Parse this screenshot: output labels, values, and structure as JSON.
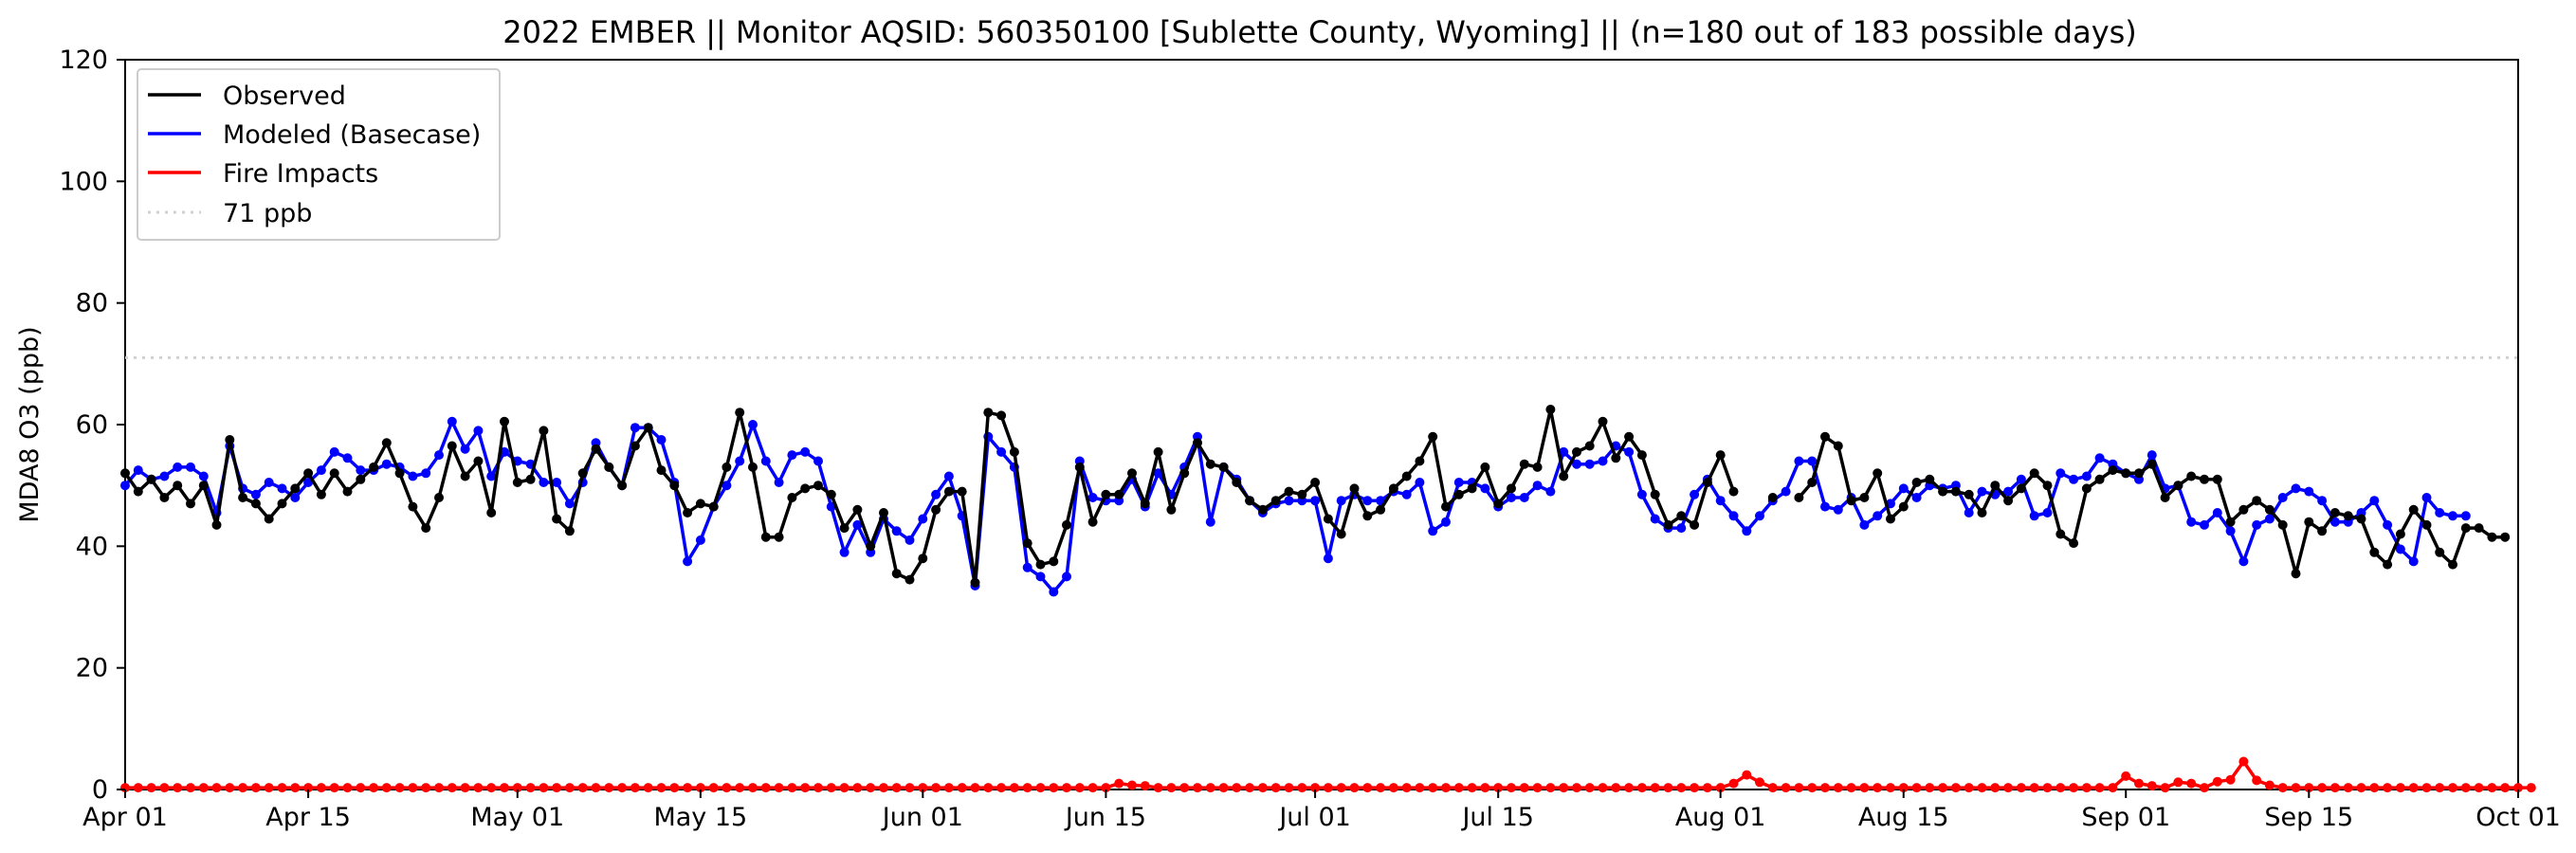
{
  "chart_data": {
    "type": "line",
    "title": "2022 EMBER || Monitor AQSID: 560350100 [Sublette County, Wyoming] || (n=180 out of 183 possible days)",
    "xlabel": "",
    "ylabel": "MDA8 O3 (ppb)",
    "xlim": [
      "2022-04-01",
      "2022-10-01"
    ],
    "ylim": [
      0,
      120
    ],
    "x_ticks": [
      "2022-04-01",
      "2022-04-15",
      "2022-05-01",
      "2022-05-15",
      "2022-06-01",
      "2022-06-15",
      "2022-07-01",
      "2022-07-15",
      "2022-08-01",
      "2022-08-15",
      "2022-09-01",
      "2022-09-15",
      "2022-10-01"
    ],
    "x_tick_labels": [
      "Apr 01",
      "Apr 15",
      "May 01",
      "May 15",
      "Jun 01",
      "Jun 15",
      "Jul 01",
      "Jul 15",
      "Aug 01",
      "Aug 15",
      "Sep 01",
      "Sep 15",
      "Oct 01"
    ],
    "y_ticks": [
      0,
      20,
      40,
      60,
      80,
      100,
      120
    ],
    "y_tick_labels": [
      "0",
      "20",
      "40",
      "60",
      "80",
      "100",
      "120"
    ],
    "grid": false,
    "legend_position": "top-left",
    "start_date": "2022-04-01",
    "threshold": {
      "name": "71 ppb",
      "value": 71,
      "color": "#d0d0d0"
    },
    "series": [
      {
        "name": "Observed",
        "color": "#000000",
        "values": [
          52,
          49,
          51,
          48,
          50,
          47,
          50,
          43.5,
          57.5,
          48,
          47,
          44.5,
          47,
          49.5,
          52,
          48.5,
          52,
          49,
          51,
          53,
          57,
          52,
          46.5,
          43,
          48,
          56.5,
          51.5,
          54,
          45.5,
          60.5,
          50.5,
          51,
          59,
          44.5,
          42.5,
          52,
          56,
          53,
          50,
          56.5,
          59.5,
          52.5,
          50,
          45.5,
          47,
          46.5,
          53,
          62,
          53,
          41.5,
          41.5,
          48,
          49.5,
          50,
          48.5,
          43,
          46,
          40,
          45.5,
          35.5,
          34.5,
          38,
          46,
          49,
          49,
          34,
          62,
          61.5,
          55.5,
          40.5,
          37,
          37.5,
          43.5,
          53,
          44,
          48.5,
          48.5,
          52,
          47,
          55.5,
          46,
          52,
          57,
          53.5,
          53,
          50.5,
          47.5,
          46,
          47.5,
          49,
          48.5,
          50.5,
          44.5,
          42,
          49.5,
          45,
          46,
          49.5,
          51.5,
          54,
          58,
          46.5,
          48.5,
          49.5,
          53,
          47,
          49.5,
          53.5,
          53,
          62.5,
          51.5,
          55.5,
          56.5,
          60.5,
          54.5,
          58,
          55,
          48.5,
          43.5,
          45,
          43.5,
          50.5,
          55,
          49,
          49,
          48.5,
          48,
          41.5,
          48,
          50.5,
          58,
          56.5,
          47.5,
          48,
          52,
          44.5,
          46.5,
          50.5,
          51,
          49,
          49,
          48.5,
          45.5,
          50,
          47.5,
          49.5,
          52,
          50,
          42,
          40.5,
          49.5,
          51,
          52.5,
          52,
          52,
          53.5,
          48,
          50,
          51.5,
          51,
          51,
          44,
          46,
          47.5,
          46,
          43.5,
          35.5,
          44,
          42.5,
          45.5,
          45,
          44.5,
          39,
          37,
          42,
          46,
          43.5,
          39,
          37,
          43,
          43,
          41.5,
          41.5
        ],
        "missing_indices": [
          124,
          125,
          127
        ]
      },
      {
        "name": "Modeled (Basecase)",
        "color": "#0000ff",
        "values": [
          50,
          52.5,
          51,
          51.5,
          53,
          53,
          51.5,
          45.5,
          56.5,
          49.5,
          48.5,
          50.5,
          49.5,
          48,
          50.5,
          52.5,
          55.5,
          54.5,
          52.5,
          52.5,
          53.5,
          53,
          51.5,
          52,
          55,
          60.5,
          56,
          59,
          51.5,
          55.5,
          54,
          53.5,
          50.5,
          50.5,
          47,
          50.5,
          57,
          53,
          50,
          59.5,
          59.5,
          57.5,
          50.5,
          37.5,
          41,
          46.5,
          50,
          54,
          60,
          54,
          50.5,
          55,
          55.5,
          54,
          46.5,
          39,
          43.5,
          39,
          44.5,
          42.5,
          41,
          44.5,
          48.5,
          51.5,
          45,
          33.5,
          58,
          55.5,
          53,
          36.5,
          35,
          32.5,
          35,
          54,
          48,
          47.5,
          47.5,
          51,
          46.5,
          52,
          48.5,
          53,
          58,
          44,
          53,
          51,
          47.5,
          45.5,
          47,
          47.5,
          47.5,
          47.5,
          38,
          47.5,
          48.5,
          47.5,
          47.5,
          49,
          48.5,
          50.5,
          42.5,
          44,
          50.5,
          50.5,
          49.5,
          46.5,
          48,
          48,
          50,
          49,
          55.5,
          53.5,
          53.5,
          54,
          56.5,
          55.5,
          48.5,
          44.5,
          43,
          43,
          48.5,
          51,
          47.5,
          45,
          42.5,
          45,
          47.5,
          49,
          54,
          54,
          46.5,
          46,
          48,
          43.5,
          45,
          47,
          49.5,
          48,
          50,
          49.5,
          50,
          45.5,
          49,
          48.5,
          49,
          51,
          45,
          45.5,
          52,
          51,
          51.5,
          54.5,
          53.5,
          52,
          51,
          55,
          49.5,
          50,
          44,
          43.5,
          45.5,
          42.5,
          37.5,
          43.5,
          44.5,
          48,
          49.5,
          49,
          47.5,
          44,
          44,
          45.5,
          47.5,
          43.5,
          39.5,
          37.5,
          48,
          45.5,
          45,
          45
        ],
        "missing_indices": []
      },
      {
        "name": "Fire Impacts",
        "color": "#ff0000",
        "values": [
          0.3,
          0.3,
          0.3,
          0.3,
          0.3,
          0.3,
          0.3,
          0.3,
          0.3,
          0.3,
          0.3,
          0.3,
          0.3,
          0.3,
          0.3,
          0.3,
          0.3,
          0.3,
          0.3,
          0.3,
          0.3,
          0.3,
          0.3,
          0.3,
          0.3,
          0.3,
          0.3,
          0.3,
          0.3,
          0.3,
          0.3,
          0.3,
          0.3,
          0.3,
          0.3,
          0.3,
          0.3,
          0.3,
          0.3,
          0.3,
          0.3,
          0.3,
          0.3,
          0.3,
          0.3,
          0.3,
          0.3,
          0.3,
          0.3,
          0.3,
          0.3,
          0.3,
          0.3,
          0.3,
          0.3,
          0.3,
          0.3,
          0.3,
          0.3,
          0.3,
          0.3,
          0.3,
          0.3,
          0.3,
          0.3,
          0.3,
          0.3,
          0.3,
          0.3,
          0.3,
          0.3,
          0.3,
          0.3,
          0.3,
          0.3,
          0.3,
          0.3,
          0.3,
          0.3,
          0.3,
          0.3,
          0.3,
          0.3,
          0.3,
          0.3,
          0.3,
          0.3,
          0.3,
          0.3,
          0.3,
          0.3,
          0.3,
          0.3,
          0.3,
          0.3,
          0.3,
          0.3,
          0.3,
          0.3,
          0.3,
          0.3,
          0.3,
          0.3,
          0.3,
          0.3,
          0.3,
          0.3,
          0.3,
          0.3,
          0.3,
          0.3,
          0.3,
          0.3,
          0.3,
          0.3,
          0.3,
          0.3,
          0.3,
          0.3,
          0.3,
          0.3,
          0.3,
          0.3,
          0.3,
          0.3,
          0.3,
          0.3,
          0.3,
          0.3,
          0.3,
          0.3,
          0.3,
          0.3,
          0.3,
          0.3,
          0.3,
          0.3,
          0.3,
          0.3,
          0.3,
          0.3,
          0.3,
          0.3,
          0.3,
          0.3,
          0.3,
          0.3,
          0.3,
          0.3,
          0.3,
          0.3,
          0.3,
          0.3,
          0.3,
          0.3,
          0.3,
          0.3,
          0.3,
          0.3,
          0.3,
          0.3,
          0.3,
          0.3,
          0.3,
          0.3,
          0.3,
          0.3,
          0.3,
          0.3,
          0.3,
          0.3,
          0.3,
          0.3,
          0.3,
          0.3,
          0.3,
          0.3,
          0.3,
          0.3,
          0.3,
          0.3,
          0.3,
          0.3,
          0.3,
          0.3
        ],
        "spikes": [
          [
            76,
            1.0
          ],
          [
            77,
            0.7
          ],
          [
            78,
            0.6
          ],
          [
            123,
            1.0
          ],
          [
            124,
            2.4
          ],
          [
            125,
            1.2
          ],
          [
            153,
            2.2
          ],
          [
            154,
            1.0
          ],
          [
            155,
            0.6
          ],
          [
            157,
            1.2
          ],
          [
            158,
            1.0
          ],
          [
            160,
            1.3
          ],
          [
            161,
            1.6
          ],
          [
            162,
            4.6
          ],
          [
            163,
            1.5
          ],
          [
            164,
            0.7
          ]
        ],
        "missing_indices": []
      },
      {
        "name": "71 ppb",
        "color": "#d0d0d0"
      }
    ]
  }
}
